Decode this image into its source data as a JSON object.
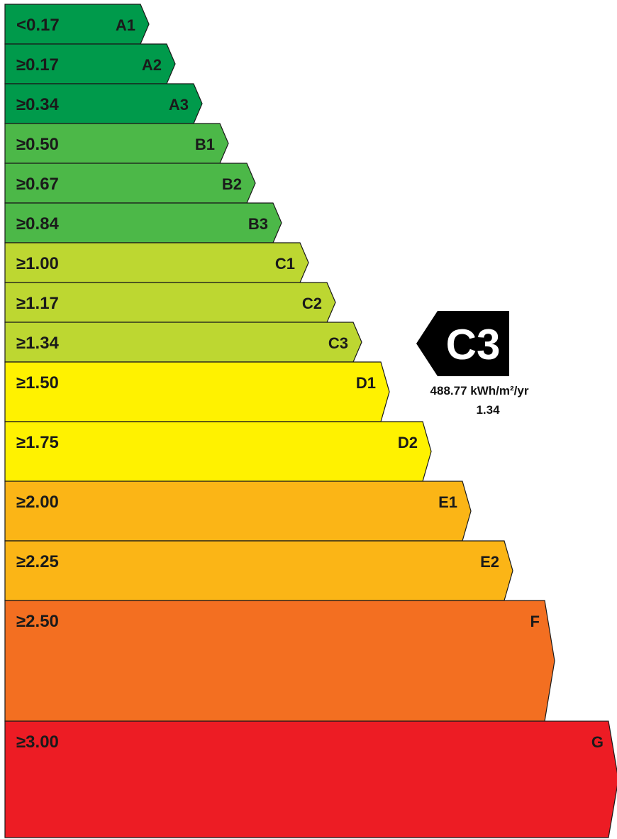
{
  "bands": [
    {
      "label": "A1",
      "threshold": "<0.17",
      "color": "#009a4b"
    },
    {
      "label": "A2",
      "threshold": "≥0.17",
      "color": "#009a4b"
    },
    {
      "label": "A3",
      "threshold": "≥0.34",
      "color": "#009a4b"
    },
    {
      "label": "B1",
      "threshold": "≥0.50",
      "color": "#4cb848"
    },
    {
      "label": "B2",
      "threshold": "≥0.67",
      "color": "#4cb848"
    },
    {
      "label": "B3",
      "threshold": "≥0.84",
      "color": "#4cb848"
    },
    {
      "label": "C1",
      "threshold": "≥1.00",
      "color": "#bdd731"
    },
    {
      "label": "C2",
      "threshold": "≥1.17",
      "color": "#bdd731"
    },
    {
      "label": "C3",
      "threshold": "≥1.34",
      "color": "#bdd731"
    },
    {
      "label": "D1",
      "threshold": "≥1.50",
      "color": "#fff200"
    },
    {
      "label": "D2",
      "threshold": "≥1.75",
      "color": "#fff200"
    },
    {
      "label": "E1",
      "threshold": "≥2.00",
      "color": "#fbb516"
    },
    {
      "label": "E2",
      "threshold": "≥2.25",
      "color": "#fbb516"
    },
    {
      "label": "F",
      "threshold": "≥2.50",
      "color": "#f36f21"
    },
    {
      "label": "G",
      "threshold": "≥3.00",
      "color": "#ed1c24"
    }
  ],
  "rating": {
    "label": "C3",
    "energy": "488.77 kWh/m²/yr",
    "ratio": "1.34",
    "color": "#000000"
  }
}
